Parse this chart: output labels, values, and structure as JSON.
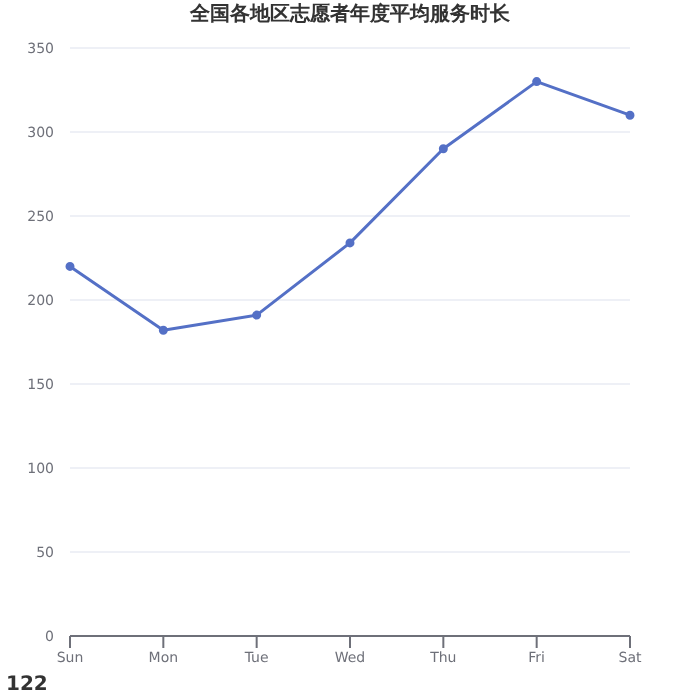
{
  "chart_data": {
    "type": "line",
    "title": "全国各地区志愿者年度平均服务时长",
    "categories": [
      "Sun",
      "Mon",
      "Tue",
      "Wed",
      "Thu",
      "Fri",
      "Sat"
    ],
    "series": [
      {
        "color": "#5470c6",
        "values": [
          220,
          182,
          191,
          234,
          290,
          330,
          310
        ]
      }
    ],
    "ylim": [
      0,
      350
    ],
    "yticks": [
      0,
      50,
      100,
      150,
      200,
      250,
      300,
      350
    ],
    "grid": "y",
    "marker": "circle",
    "line_style": "solid",
    "legend": false,
    "annotations": [
      "122"
    ]
  }
}
